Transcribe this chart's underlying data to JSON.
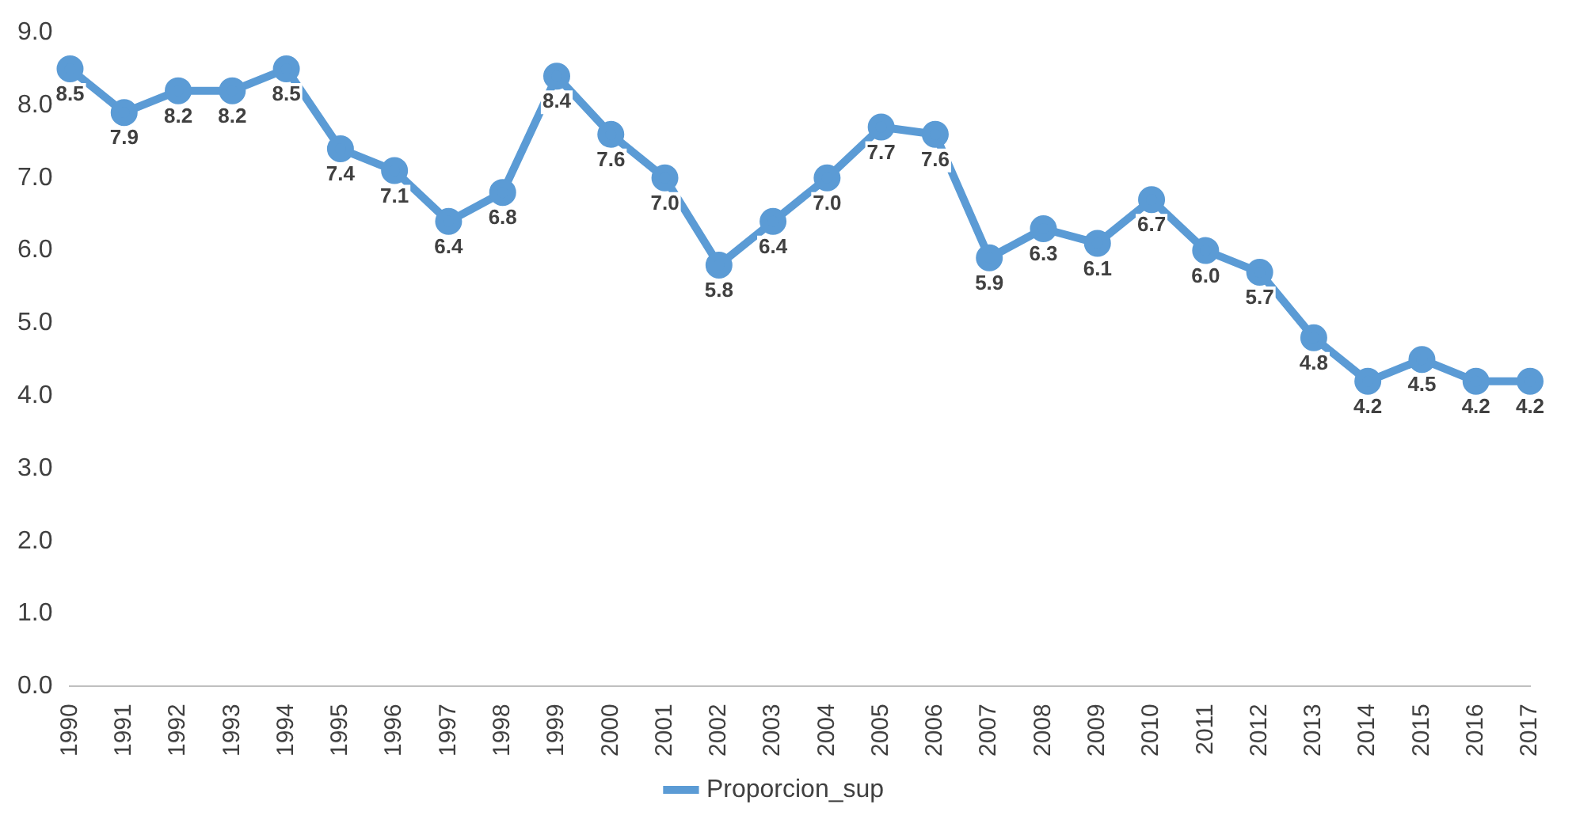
{
  "chart_data": {
    "type": "line",
    "categories": [
      "1990",
      "1991",
      "1992",
      "1993",
      "1994",
      "1995",
      "1996",
      "1997",
      "1998",
      "1999",
      "2000",
      "2001",
      "2002",
      "2003",
      "2004",
      "2005",
      "2006",
      "2007",
      "2008",
      "2009",
      "2010",
      "2011",
      "2012",
      "2013",
      "2014",
      "2015",
      "2016",
      "2017"
    ],
    "series": [
      {
        "name": "Proporcion_sup",
        "color": "#5b9bd5",
        "values": [
          8.5,
          7.9,
          8.2,
          8.2,
          8.5,
          7.4,
          7.1,
          6.4,
          6.8,
          8.4,
          7.6,
          7.0,
          5.8,
          6.4,
          7.0,
          7.7,
          7.6,
          5.9,
          6.3,
          6.1,
          6.7,
          6.0,
          5.7,
          4.8,
          4.2,
          4.5,
          4.2,
          4.2
        ],
        "value_labels": [
          "8.5",
          "7.9",
          "8.2",
          "8.2",
          "8.5",
          "7.4",
          "7.1",
          "6.4",
          "6.8",
          "8.4",
          "7.6",
          "7.0",
          "5.8",
          "6.4",
          "7.0",
          "7.7",
          "7.6",
          "5.9",
          "6.3",
          "6.1",
          "6.7",
          "6.0",
          "5.7",
          "4.8",
          "4.2",
          "4.5",
          "4.2",
          "4.2"
        ]
      }
    ],
    "ylim": [
      0,
      9
    ],
    "yticks": [
      {
        "value": 0,
        "label": "0.0"
      },
      {
        "value": 1,
        "label": "1.0"
      },
      {
        "value": 2,
        "label": "2.0"
      },
      {
        "value": 3,
        "label": "3.0"
      },
      {
        "value": 4,
        "label": "4.0"
      },
      {
        "value": 5,
        "label": "5.0"
      },
      {
        "value": 6,
        "label": "6.0"
      },
      {
        "value": 7,
        "label": "7.0"
      },
      {
        "value": 8,
        "label": "8.0"
      },
      {
        "value": 9,
        "label": "9.0"
      }
    ],
    "grid": false,
    "legend": "bottom",
    "marker": "circle",
    "line_style": "solid"
  }
}
